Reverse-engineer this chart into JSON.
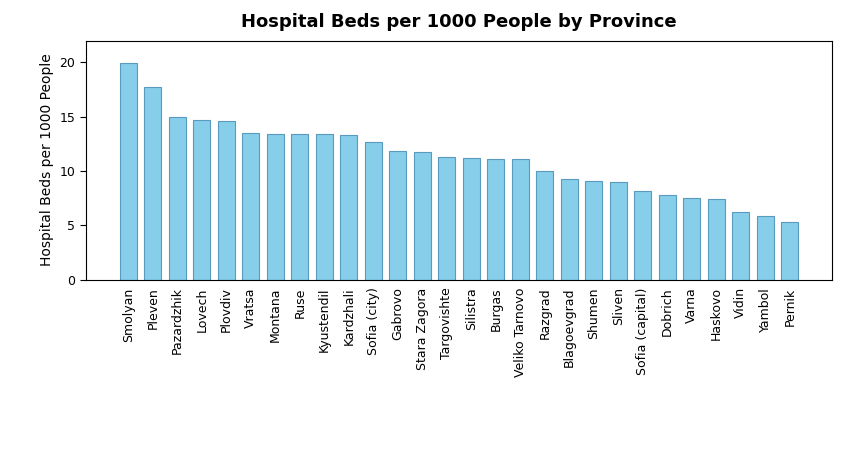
{
  "title": "Hospital Beds per 1000 People by Province",
  "ylabel": "Hospital Beds per 1000 People",
  "categories": [
    "Smolyan",
    "Pleven",
    "Pazardzhik",
    "Lovech",
    "Plovdiv",
    "Vratsa",
    "Montana",
    "Ruse",
    "Kyustendil",
    "Kardzhali",
    "Sofia (city)",
    "Gabrovo",
    "Stara Zagora",
    "Targovishte",
    "Silistra",
    "Burgas",
    "Veliko Tarnovo",
    "Razgrad",
    "Blagoevgrad",
    "Shumen",
    "Sliven",
    "Sofia (capital)",
    "Dobrich",
    "Varna",
    "Haskovo",
    "Vidin",
    "Yambol",
    "Pernik"
  ],
  "values": [
    19.9,
    17.7,
    15.0,
    14.7,
    14.6,
    13.5,
    13.4,
    13.4,
    13.4,
    13.3,
    12.7,
    11.8,
    11.7,
    11.3,
    11.2,
    11.1,
    11.1,
    10.0,
    9.3,
    9.1,
    9.0,
    8.2,
    7.8,
    7.5,
    7.4,
    6.2,
    5.9,
    5.3
  ],
  "bar_color": "#87CEEB",
  "bar_edge_color": "#5a9abf",
  "background_color": "#ffffff",
  "ylim": [
    0,
    22
  ],
  "yticks": [
    0,
    5,
    10,
    15,
    20
  ],
  "title_fontsize": 13,
  "label_fontsize": 10,
  "tick_fontsize": 9
}
